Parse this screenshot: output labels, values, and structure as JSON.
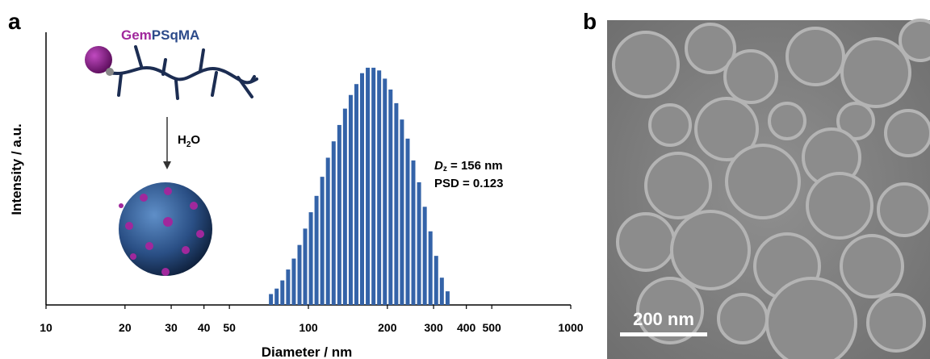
{
  "chart_data": {
    "type": "bar",
    "panel_a_label": "a",
    "panel_b_label": "b",
    "xlabel": "Diameter / nm",
    "ylabel": "Intensity / a.u.",
    "x": [
      72,
      75.7,
      79.6,
      83.7,
      88.0,
      92.5,
      97.2,
      102.2,
      107.4,
      112.9,
      118.7,
      124.8,
      131.2,
      137.9,
      145.0,
      152.4,
      160.2,
      168.4,
      177.1,
      186.1,
      195.7,
      205.7,
      216.3,
      227.3,
      239.0,
      251.2,
      264.1,
      277.7,
      291.9,
      306.9,
      322.6,
      339.2
    ],
    "values": [
      4,
      6,
      9,
      13,
      17,
      22,
      28,
      34,
      40,
      47,
      54,
      60,
      66,
      72,
      77,
      81,
      85,
      87,
      87,
      86,
      83,
      79,
      74,
      68,
      61,
      53,
      45,
      36,
      27,
      18,
      10,
      5
    ],
    "color": "#3463a8",
    "xlim": [
      10,
      1000
    ],
    "xticks": [
      10,
      20,
      30,
      40,
      50,
      100,
      200,
      300,
      400,
      500,
      1000
    ],
    "xscale": "log",
    "ylim": [
      0,
      100
    ],
    "annotation_dz": {
      "symbol": "D",
      "subscript": "z",
      "rest": " = 156 nm"
    },
    "annotation_psd": "PSD = 0.123",
    "molecule_label": {
      "part1": "Gem",
      "part2": "PSqMA"
    },
    "arrow_label": {
      "part1": "H",
      "subscript": "2",
      "part2": "O"
    },
    "scale_bar": "200 nm"
  }
}
